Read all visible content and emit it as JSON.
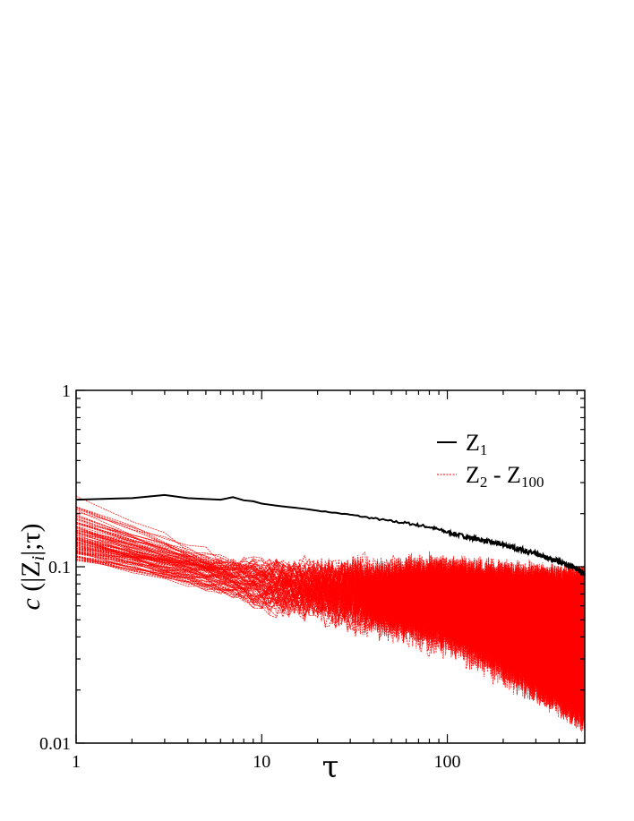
{
  "chart_data": {
    "type": "line",
    "x_scale": "log",
    "y_scale": "log",
    "xlim": [
      1,
      550
    ],
    "ylim": [
      0.01,
      1
    ],
    "xlabel": "τ",
    "ylabel": {
      "prefix": "c",
      "open": " (|Z",
      "subscript": "i",
      "close": "|;τ)"
    },
    "x_ticks": [
      {
        "value": 1,
        "label": "1"
      },
      {
        "value": 10,
        "label": "10"
      },
      {
        "value": 100,
        "label": "100"
      }
    ],
    "y_ticks": [
      {
        "value": 0.01,
        "label": "0.01"
      },
      {
        "value": 0.1,
        "label": "0.1"
      },
      {
        "value": 1,
        "label": "1"
      }
    ],
    "legend": {
      "placement": "top-right",
      "entries": [
        {
          "series": "Z1",
          "text": "Z",
          "sub": "1",
          "text2": "",
          "sub2": ""
        },
        {
          "series": "Z2-Z100",
          "text": "Z",
          "sub": "2",
          "text2": " - Z",
          "sub2": "100"
        }
      ]
    },
    "series": [
      {
        "name": "Z1",
        "color": "#000000",
        "style": "solid",
        "points": [
          [
            1,
            0.24
          ],
          [
            2,
            0.245
          ],
          [
            3,
            0.255
          ],
          [
            4,
            0.245
          ],
          [
            5,
            0.242
          ],
          [
            6,
            0.24
          ],
          [
            7,
            0.248
          ],
          [
            8,
            0.238
          ],
          [
            9,
            0.235
          ],
          [
            10,
            0.228
          ],
          [
            12,
            0.222
          ],
          [
            14,
            0.218
          ],
          [
            17,
            0.213
          ],
          [
            20,
            0.208
          ],
          [
            25,
            0.202
          ],
          [
            30,
            0.197
          ],
          [
            40,
            0.188
          ],
          [
            50,
            0.181
          ],
          [
            60,
            0.177
          ],
          [
            70,
            0.172
          ],
          [
            80,
            0.168
          ],
          [
            100,
            0.157
          ],
          [
            130,
            0.147
          ],
          [
            160,
            0.14
          ],
          [
            200,
            0.133
          ],
          [
            250,
            0.125
          ],
          [
            300,
            0.118
          ],
          [
            350,
            0.112
          ],
          [
            400,
            0.107
          ],
          [
            450,
            0.102
          ],
          [
            500,
            0.097
          ],
          [
            550,
            0.092
          ]
        ]
      },
      {
        "name": "Z2-Z100",
        "color": "#ff0000",
        "style": "dashed",
        "count": 99,
        "start_range": [
          0.11,
          0.27
        ],
        "mid_range_at_tau_10": [
          0.06,
          0.1
        ],
        "end_range": [
          0.01,
          0.065
        ]
      }
    ]
  }
}
